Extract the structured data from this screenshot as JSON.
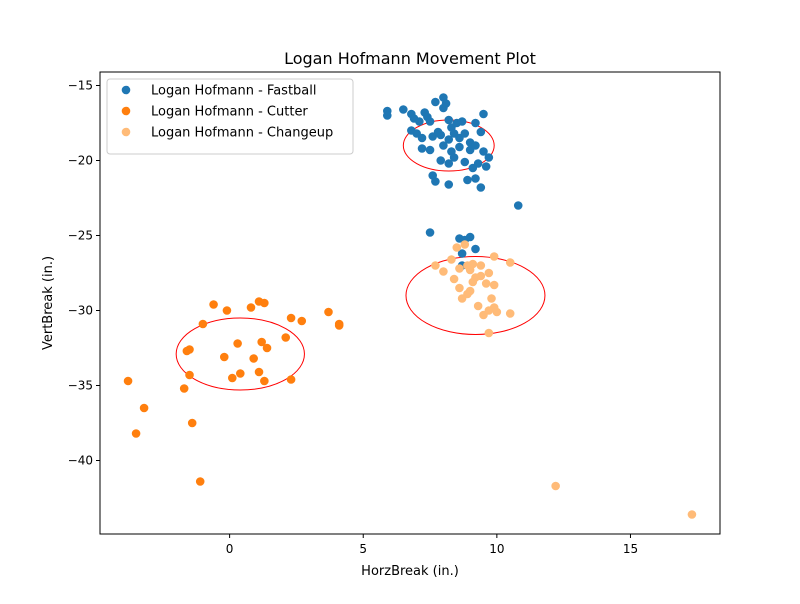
{
  "chart_data": {
    "type": "scatter",
    "title": "Logan Hofmann Movement Plot",
    "xlabel": "HorzBreak (in.)",
    "ylabel": "VertBreak (in.)",
    "xlim": [
      -4.85,
      18.35
    ],
    "ylim": [
      -44.9,
      -14.1
    ],
    "xticks": [
      0,
      5,
      10,
      15
    ],
    "xtick_labels": [
      "0",
      "5",
      "10",
      "15"
    ],
    "yticks": [
      -40,
      -35,
      -30,
      -25,
      -20,
      -15
    ],
    "ytick_labels": [
      "−40",
      "−35",
      "−30",
      "−25",
      "−20",
      "−15"
    ],
    "grid": false,
    "legend_position": "top-left",
    "series": [
      {
        "name": "Logan Hofmann - Fastball",
        "color": "#1f77b4",
        "points": [
          [
            5.9,
            -16.7
          ],
          [
            5.9,
            -17.0
          ],
          [
            6.5,
            -16.6
          ],
          [
            6.8,
            -16.9
          ],
          [
            6.9,
            -17.2
          ],
          [
            7.1,
            -17.4
          ],
          [
            7.3,
            -16.8
          ],
          [
            7.4,
            -17.1
          ],
          [
            7.5,
            -17.4
          ],
          [
            7.7,
            -16.1
          ],
          [
            8.0,
            -15.8
          ],
          [
            8.0,
            -16.5
          ],
          [
            8.1,
            -16.2
          ],
          [
            8.2,
            -17.3
          ],
          [
            8.3,
            -17.8
          ],
          [
            8.5,
            -17.5
          ],
          [
            8.7,
            -17.4
          ],
          [
            9.2,
            -17.5
          ],
          [
            9.5,
            -16.9
          ],
          [
            6.8,
            -18.0
          ],
          [
            7.0,
            -18.2
          ],
          [
            7.2,
            -18.5
          ],
          [
            7.6,
            -18.4
          ],
          [
            7.8,
            -18.1
          ],
          [
            7.9,
            -18.3
          ],
          [
            8.2,
            -18.6
          ],
          [
            8.4,
            -18.2
          ],
          [
            8.6,
            -18.5
          ],
          [
            8.8,
            -18.2
          ],
          [
            9.0,
            -18.8
          ],
          [
            9.4,
            -18.1
          ],
          [
            7.2,
            -19.2
          ],
          [
            7.5,
            -19.3
          ],
          [
            8.0,
            -19.0
          ],
          [
            8.3,
            -19.4
          ],
          [
            8.6,
            -19.1
          ],
          [
            9.0,
            -19.3
          ],
          [
            9.2,
            -19.0
          ],
          [
            9.5,
            -19.4
          ],
          [
            9.7,
            -19.8
          ],
          [
            7.9,
            -20.0
          ],
          [
            8.2,
            -20.2
          ],
          [
            8.4,
            -19.8
          ],
          [
            8.8,
            -20.1
          ],
          [
            9.1,
            -20.5
          ],
          [
            9.3,
            -20.2
          ],
          [
            9.6,
            -20.4
          ],
          [
            7.6,
            -21.0
          ],
          [
            7.7,
            -21.4
          ],
          [
            8.2,
            -21.6
          ],
          [
            8.9,
            -21.3
          ],
          [
            9.2,
            -21.2
          ],
          [
            9.4,
            -21.8
          ],
          [
            10.8,
            -23.0
          ],
          [
            7.5,
            -24.8
          ],
          [
            8.6,
            -25.2
          ],
          [
            8.8,
            -25.3
          ],
          [
            9.0,
            -25.1
          ],
          [
            9.2,
            -25.9
          ],
          [
            8.7,
            -26.2
          ],
          [
            8.7,
            -27.0
          ]
        ]
      },
      {
        "name": "Logan Hofmann - Cutter",
        "color": "#ff7f0e",
        "points": [
          [
            -0.6,
            -29.6
          ],
          [
            -0.1,
            -30.0
          ],
          [
            0.8,
            -29.8
          ],
          [
            1.1,
            -29.4
          ],
          [
            1.3,
            -29.5
          ],
          [
            2.3,
            -30.5
          ],
          [
            2.7,
            -30.7
          ],
          [
            3.7,
            -30.1
          ],
          [
            4.1,
            -30.9
          ],
          [
            4.1,
            -31.0
          ],
          [
            -1.0,
            -30.9
          ],
          [
            2.1,
            -31.8
          ],
          [
            0.3,
            -32.2
          ],
          [
            1.2,
            -32.1
          ],
          [
            1.4,
            -32.5
          ],
          [
            -1.5,
            -32.6
          ],
          [
            -1.6,
            -32.7
          ],
          [
            -0.2,
            -33.1
          ],
          [
            0.9,
            -33.2
          ],
          [
            1.1,
            -34.1
          ],
          [
            0.4,
            -34.2
          ],
          [
            0.1,
            -34.5
          ],
          [
            -1.5,
            -34.3
          ],
          [
            1.3,
            -34.7
          ],
          [
            2.3,
            -34.6
          ],
          [
            -3.8,
            -34.7
          ],
          [
            -1.7,
            -35.2
          ],
          [
            -3.2,
            -36.5
          ],
          [
            -1.4,
            -37.5
          ],
          [
            -3.5,
            -38.2
          ],
          [
            -1.1,
            -41.4
          ]
        ]
      },
      {
        "name": "Logan Hofmann - Changeup",
        "color": "#ffbb78",
        "points": [
          [
            8.5,
            -25.8
          ],
          [
            8.8,
            -25.6
          ],
          [
            9.9,
            -26.4
          ],
          [
            8.3,
            -26.6
          ],
          [
            10.5,
            -26.8
          ],
          [
            7.7,
            -27.0
          ],
          [
            8.6,
            -27.2
          ],
          [
            8.9,
            -27.0
          ],
          [
            9.1,
            -26.9
          ],
          [
            9.4,
            -27.0
          ],
          [
            8.0,
            -27.4
          ],
          [
            9.0,
            -27.3
          ],
          [
            9.7,
            -27.5
          ],
          [
            8.4,
            -27.9
          ],
          [
            9.2,
            -27.8
          ],
          [
            9.4,
            -27.7
          ],
          [
            9.1,
            -28.1
          ],
          [
            9.9,
            -28.3
          ],
          [
            8.6,
            -28.5
          ],
          [
            8.9,
            -28.9
          ],
          [
            9.0,
            -28.7
          ],
          [
            9.6,
            -28.2
          ],
          [
            8.7,
            -29.2
          ],
          [
            9.3,
            -29.7
          ],
          [
            9.8,
            -29.2
          ],
          [
            9.9,
            -29.8
          ],
          [
            9.7,
            -30.0
          ],
          [
            9.5,
            -30.3
          ],
          [
            10.0,
            -30.1
          ],
          [
            10.5,
            -30.2
          ],
          [
            9.7,
            -31.5
          ],
          [
            12.2,
            -41.7
          ],
          [
            17.3,
            -43.6
          ]
        ]
      }
    ],
    "ellipses": [
      {
        "series": "Logan Hofmann - Fastball",
        "center": [
          8.2,
          -19.0
        ],
        "rx": 1.7,
        "ry": 1.7,
        "color": "#ff0000"
      },
      {
        "series": "Logan Hofmann - Cutter",
        "center": [
          0.4,
          -32.9
        ],
        "rx": 2.4,
        "ry": 2.4,
        "color": "#ff0000"
      },
      {
        "series": "Logan Hofmann - Changeup",
        "center": [
          9.2,
          -29.0
        ],
        "rx": 2.6,
        "ry": 2.6,
        "color": "#ff0000"
      }
    ]
  }
}
